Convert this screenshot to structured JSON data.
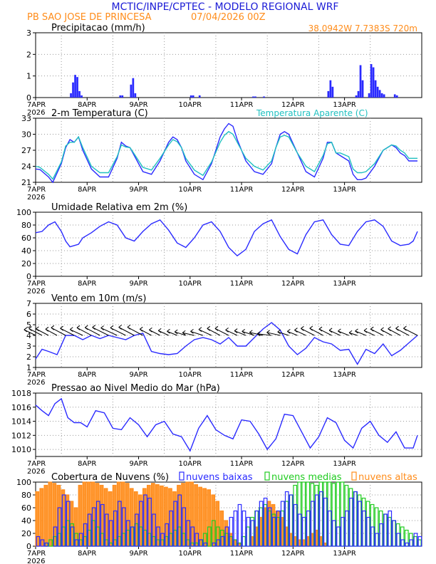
{
  "header": {
    "title": "MCTIC/INPE/CPTEC - MODELO REGIONAL WRF",
    "location": "PB SAO JOSE DE PRINCESA",
    "run": "07/04/2026 00Z",
    "coords": "38.0942W 7.7383S 720m"
  },
  "colors": {
    "blue": "#2a2aff",
    "cyan": "#20c0c0",
    "green": "#20cc20",
    "orange": "#ff8c1a",
    "title_blue": "#1a1ad6"
  },
  "x_ticks": [
    "7APR",
    "8APR",
    "9APR",
    "10APR",
    "11APR",
    "12APR",
    "13APR"
  ],
  "x_year": "2026",
  "chart_data": [
    {
      "type": "bar",
      "title": "Precipitacao (mm/h)",
      "ylim": [
        0,
        3
      ],
      "yticks": [
        0,
        1,
        2,
        3
      ],
      "x_unit": "hours since 7APR 00Z",
      "bars": [
        [
          16,
          0.2
        ],
        [
          17,
          0.7
        ],
        [
          18,
          1.05
        ],
        [
          19,
          0.95
        ],
        [
          20,
          0.3
        ],
        [
          21,
          0.1
        ],
        [
          39,
          0.1
        ],
        [
          40,
          0.1
        ],
        [
          44,
          0.6
        ],
        [
          45,
          0.9
        ],
        [
          46,
          0.2
        ],
        [
          72,
          0.1
        ],
        [
          73,
          0.1
        ],
        [
          76,
          0.1
        ],
        [
          101,
          0.05
        ],
        [
          102,
          0.05
        ],
        [
          106,
          0.05
        ],
        [
          136,
          0.3
        ],
        [
          137,
          0.8
        ],
        [
          138,
          0.5
        ],
        [
          149,
          0.1
        ],
        [
          150,
          0.3
        ],
        [
          151,
          1.5
        ],
        [
          152,
          0.8
        ],
        [
          155,
          0.2
        ],
        [
          156,
          1.55
        ],
        [
          157,
          1.4
        ],
        [
          158,
          0.8
        ],
        [
          159,
          0.5
        ],
        [
          160,
          0.35
        ],
        [
          161,
          0.2
        ],
        [
          162,
          0.15
        ],
        [
          167,
          0.15
        ],
        [
          168,
          0.1
        ]
      ]
    },
    {
      "type": "line",
      "title": "2-m Temperatura (C)",
      "legend": "Temperatura Aparente (C)",
      "ylim": [
        21,
        33
      ],
      "yticks": [
        21,
        24,
        27,
        30,
        33
      ],
      "series": [
        {
          "name": "2-m Temperatura (C)",
          "x": [
            0,
            2,
            6,
            8,
            12,
            14,
            16,
            18,
            20,
            22,
            26,
            30,
            34,
            38,
            40,
            42,
            44,
            46,
            50,
            54,
            58,
            62,
            64,
            66,
            68,
            70,
            74,
            78,
            82,
            86,
            88,
            90,
            92,
            94,
            98,
            102,
            106,
            110,
            112,
            114,
            116,
            118,
            122,
            126,
            130,
            134,
            136,
            138,
            140,
            142,
            146,
            148,
            150,
            152,
            154,
            158,
            162,
            166,
            168,
            170,
            172,
            174,
            178
          ],
          "values": [
            23.5,
            23.4,
            22.0,
            21.0,
            24.5,
            27.5,
            29.0,
            28.5,
            29.5,
            27.0,
            23.5,
            22.0,
            22.0,
            25.5,
            28.5,
            27.8,
            27.5,
            26.0,
            23.0,
            22.5,
            25.0,
            28.5,
            29.5,
            29.0,
            27.5,
            25.0,
            22.5,
            21.5,
            24.5,
            29.5,
            31.0,
            32.0,
            31.5,
            29.0,
            25.0,
            23.0,
            22.5,
            24.5,
            27.5,
            30.0,
            30.5,
            30.0,
            26.5,
            23.0,
            22.0,
            25.5,
            28.5,
            28.5,
            26.5,
            26.0,
            25.0,
            22.5,
            21.5,
            21.5,
            21.8,
            24.0,
            27.0,
            28.0,
            27.5,
            26.5,
            26.0,
            25.0,
            25.0
          ]
        },
        {
          "name": "Temperatura Aparente (C)",
          "x": [
            0,
            2,
            6,
            8,
            12,
            14,
            16,
            18,
            20,
            22,
            26,
            30,
            34,
            38,
            40,
            42,
            44,
            46,
            50,
            54,
            58,
            62,
            64,
            66,
            68,
            70,
            74,
            78,
            82,
            86,
            88,
            90,
            92,
            94,
            98,
            102,
            106,
            110,
            112,
            114,
            116,
            118,
            122,
            126,
            130,
            134,
            136,
            138,
            140,
            142,
            146,
            148,
            150,
            152,
            154,
            158,
            162,
            166,
            168,
            170,
            172,
            174,
            178
          ],
          "values": [
            24.0,
            23.8,
            22.5,
            21.6,
            24.8,
            27.8,
            28.5,
            28.5,
            29.5,
            27.5,
            24.0,
            22.8,
            22.8,
            25.8,
            28.0,
            27.6,
            27.5,
            26.3,
            23.8,
            23.3,
            25.5,
            28.0,
            29.0,
            28.6,
            27.5,
            25.5,
            23.3,
            22.3,
            24.8,
            28.5,
            29.8,
            30.5,
            30.0,
            28.5,
            25.5,
            24.0,
            23.3,
            25.0,
            27.5,
            29.5,
            29.8,
            29.5,
            26.5,
            24.0,
            23.0,
            26.0,
            28.2,
            28.5,
            26.5,
            26.5,
            25.8,
            23.5,
            22.8,
            22.8,
            23.0,
            24.5,
            27.0,
            28.0,
            27.8,
            27.0,
            26.5,
            25.5,
            25.5
          ]
        }
      ]
    },
    {
      "type": "line",
      "title": "Umidade Relativa em 2m (%)",
      "ylim": [
        0,
        100
      ],
      "yticks": [
        0,
        20,
        40,
        60,
        80,
        100
      ],
      "series": [
        {
          "name": "Umidade Relativa em 2m (%)",
          "x": [
            0,
            3,
            6,
            9,
            12,
            14,
            16,
            18,
            20,
            22,
            26,
            30,
            34,
            38,
            42,
            46,
            50,
            54,
            58,
            62,
            66,
            70,
            74,
            78,
            82,
            86,
            90,
            94,
            98,
            102,
            106,
            110,
            114,
            118,
            122,
            126,
            130,
            134,
            138,
            142,
            146,
            150,
            154,
            158,
            162,
            166,
            170,
            174,
            176,
            178
          ],
          "values": [
            68,
            70,
            80,
            85,
            70,
            55,
            46,
            48,
            50,
            60,
            68,
            78,
            85,
            80,
            60,
            55,
            70,
            82,
            88,
            72,
            52,
            45,
            60,
            80,
            85,
            70,
            45,
            32,
            42,
            70,
            82,
            88,
            62,
            42,
            35,
            65,
            85,
            88,
            65,
            50,
            48,
            70,
            85,
            88,
            78,
            55,
            48,
            50,
            55,
            70
          ]
        }
      ]
    },
    {
      "type": "line",
      "title": "Vento em 10m (m/s)",
      "ylim": [
        1,
        7
      ],
      "yticks": [
        1,
        2,
        3,
        4,
        5,
        6,
        7
      ],
      "series": [
        {
          "name": "Vento em 10m (m/s)",
          "x": [
            0,
            3,
            6,
            10,
            14,
            18,
            22,
            26,
            30,
            34,
            38,
            42,
            46,
            50,
            54,
            58,
            62,
            66,
            70,
            74,
            78,
            82,
            86,
            90,
            94,
            98,
            102,
            106,
            110,
            114,
            118,
            122,
            126,
            130,
            134,
            138,
            142,
            146,
            150,
            154,
            158,
            162,
            166,
            170,
            174,
            178
          ],
          "values": [
            1.8,
            2.7,
            2.5,
            2.2,
            4.0,
            4.0,
            3.6,
            4.0,
            3.7,
            4.0,
            3.8,
            3.6,
            4.0,
            4.2,
            2.5,
            2.3,
            2.2,
            2.3,
            3.0,
            3.6,
            3.8,
            3.6,
            3.2,
            3.8,
            3.0,
            3.0,
            3.8,
            4.6,
            5.2,
            4.5,
            3.0,
            2.2,
            2.8,
            3.8,
            3.4,
            3.2,
            2.6,
            2.7,
            1.3,
            2.7,
            2.3,
            3.2,
            2.1,
            2.6,
            3.3,
            4.0
          ]
        }
      ],
      "barbs_direction_deg": [
        170,
        175,
        180,
        190,
        200,
        210,
        220,
        200,
        180,
        170,
        160,
        170,
        180,
        190,
        200,
        210,
        220,
        230,
        240,
        250,
        240,
        220,
        200,
        210,
        220,
        230,
        240,
        250,
        260,
        250,
        240,
        230,
        220,
        210,
        200,
        210,
        220,
        230,
        240,
        230,
        220,
        210,
        200,
        190,
        200,
        210
      ]
    },
    {
      "type": "line",
      "title": "Pressao ao Nivel Medio do Mar (hPa)",
      "ylim": [
        1009,
        1018
      ],
      "yticks": [
        1010,
        1012,
        1014,
        1016,
        1018
      ],
      "series": [
        {
          "name": "Pressao ao Nivel Medio do Mar (hPa)",
          "x": [
            0,
            3,
            6,
            9,
            12,
            15,
            18,
            21,
            24,
            28,
            32,
            36,
            40,
            44,
            48,
            52,
            56,
            60,
            64,
            68,
            72,
            76,
            80,
            84,
            88,
            92,
            96,
            100,
            104,
            108,
            112,
            116,
            120,
            124,
            128,
            132,
            136,
            140,
            144,
            148,
            152,
            156,
            160,
            164,
            168,
            172,
            176,
            178
          ],
          "values": [
            1016.3,
            1015.5,
            1014.8,
            1016.5,
            1017.2,
            1014.5,
            1013.8,
            1013.8,
            1013.2,
            1015.5,
            1015.2,
            1013.0,
            1012.8,
            1014.5,
            1013.5,
            1011.8,
            1013.5,
            1014.0,
            1012.2,
            1011.8,
            1009.8,
            1013.0,
            1014.8,
            1012.8,
            1012.0,
            1011.5,
            1014.2,
            1014.0,
            1012.2,
            1010.0,
            1011.5,
            1015.0,
            1014.8,
            1012.5,
            1010.2,
            1011.8,
            1014.5,
            1013.8,
            1011.3,
            1010.2,
            1013.0,
            1014.0,
            1012.0,
            1011.0,
            1012.5,
            1010.2,
            1010.2,
            1012.0
          ]
        }
      ]
    },
    {
      "type": "bar",
      "title": "Cobertura de Nuvens (%)",
      "legend": [
        "nuvens baixas",
        "nuvens medias",
        "nuvens altas"
      ],
      "ylim": [
        0,
        100
      ],
      "yticks": [
        0,
        20,
        40,
        60,
        80,
        100
      ],
      "series": [
        {
          "name": "nuvens altas",
          "values": [
            85,
            90,
            95,
            100,
            98,
            95,
            88,
            80,
            70,
            60,
            95,
            100,
            100,
            100,
            98,
            95,
            90,
            85,
            95,
            100,
            100,
            98,
            90,
            85,
            80,
            90,
            95,
            98,
            96,
            94,
            92,
            90,
            85,
            95,
            98,
            100,
            100,
            96,
            92,
            90,
            88,
            80,
            70,
            55,
            40,
            20,
            10,
            5,
            0,
            0,
            15,
            30,
            45,
            60,
            70,
            65,
            55,
            45,
            30,
            20,
            15,
            10,
            10,
            15,
            20,
            25,
            15,
            5,
            0,
            0,
            0,
            0,
            0,
            0,
            0,
            0,
            0,
            0,
            0,
            0,
            0,
            0,
            0,
            0,
            0,
            0,
            0,
            0,
            0,
            0
          ]
        },
        {
          "name": "nuvens medias",
          "values": [
            0,
            0,
            5,
            10,
            15,
            20,
            30,
            40,
            35,
            20,
            10,
            15,
            25,
            40,
            30,
            20,
            10,
            5,
            10,
            15,
            20,
            25,
            30,
            35,
            30,
            25,
            20,
            15,
            10,
            10,
            15,
            20,
            25,
            30,
            20,
            10,
            5,
            5,
            10,
            20,
            30,
            40,
            30,
            25,
            20,
            15,
            10,
            5,
            15,
            30,
            45,
            55,
            60,
            65,
            55,
            50,
            45,
            55,
            70,
            80,
            95,
            100,
            100,
            100,
            98,
            95,
            100,
            100,
            100,
            98,
            100,
            100,
            95,
            90,
            85,
            80,
            75,
            70,
            65,
            60,
            55,
            50,
            45,
            40,
            35,
            30,
            25,
            20,
            15,
            10
          ]
        },
        {
          "name": "nuvens baixas",
          "values": [
            15,
            10,
            5,
            0,
            30,
            60,
            80,
            70,
            30,
            10,
            20,
            35,
            50,
            60,
            70,
            65,
            50,
            40,
            55,
            70,
            60,
            40,
            30,
            50,
            70,
            80,
            75,
            50,
            30,
            20,
            35,
            55,
            70,
            80,
            60,
            40,
            30,
            20,
            10,
            5,
            0,
            5,
            10,
            15,
            30,
            45,
            55,
            65,
            55,
            45,
            40,
            55,
            70,
            75,
            60,
            45,
            55,
            70,
            85,
            80,
            65,
            50,
            45,
            55,
            70,
            80,
            85,
            75,
            55,
            40,
            30,
            45,
            55,
            75,
            85,
            70,
            55,
            45,
            30,
            20,
            35,
            50,
            55,
            40,
            20,
            10,
            5,
            10,
            20,
            15
          ]
        }
      ]
    }
  ]
}
